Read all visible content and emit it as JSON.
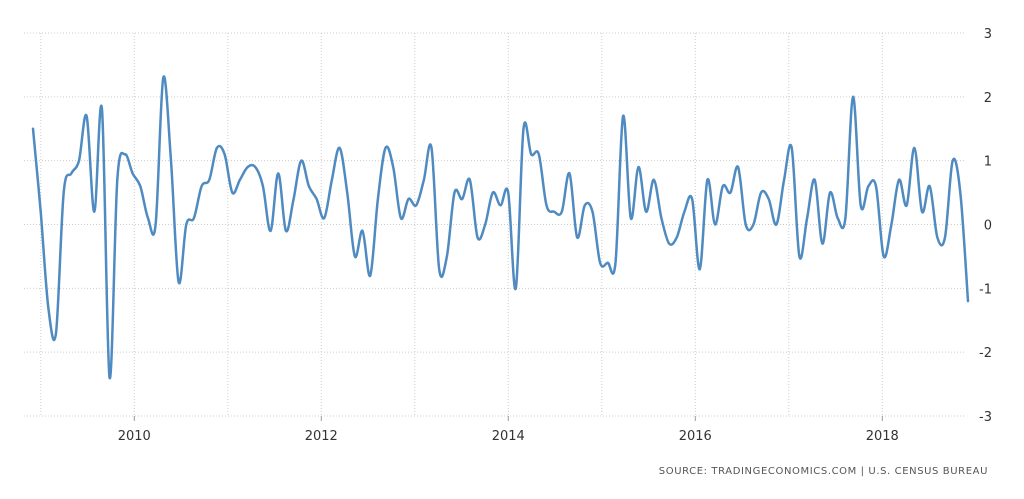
{
  "source_text": "SOURCE: TRADINGECONOMICS.COM | U.S. CENSUS BUREAU",
  "colors": {
    "line": "#4f8bc0",
    "grid": "#cccccc",
    "text": "#333333"
  },
  "chart_data": {
    "type": "line",
    "title": "",
    "xlabel": "",
    "ylabel": "",
    "ylim": [
      -3,
      3
    ],
    "yticks": [
      "3",
      "2",
      "1",
      "0",
      "-1",
      "-2",
      "-3"
    ],
    "xticks": [
      "2010",
      "2012",
      "2014",
      "2016",
      "2018"
    ],
    "x_start": "2008-12",
    "x_end": "2018-12",
    "grid": true,
    "legend": "none",
    "series": [
      {
        "values": [
          1.5,
          0.2,
          -1.3,
          -1.7,
          0.5,
          0.8,
          1.0,
          1.7,
          0.2,
          1.8,
          -2.4,
          0.7,
          1.1,
          0.8,
          0.6,
          0.1,
          0.0,
          2.3,
          1.0,
          -0.9,
          0.0,
          0.1,
          0.6,
          0.7,
          1.2,
          1.1,
          0.5,
          0.7,
          0.9,
          0.9,
          0.6,
          -0.1,
          0.8,
          -0.1,
          0.4,
          1.0,
          0.6,
          0.4,
          0.1,
          0.7,
          1.2,
          0.5,
          -0.5,
          -0.1,
          -0.8,
          0.4,
          1.2,
          0.9,
          0.1,
          0.4,
          0.3,
          0.7,
          1.2,
          -0.7,
          -0.5,
          0.5,
          0.4,
          0.7,
          -0.2,
          0.0,
          0.5,
          0.3,
          0.5,
          -1.0,
          1.5,
          1.1,
          1.1,
          0.3,
          0.2,
          0.2,
          0.8,
          -0.2,
          0.3,
          0.2,
          -0.6,
          -0.6,
          -0.6,
          1.7,
          0.1,
          0.9,
          0.2,
          0.7,
          0.1,
          -0.3,
          -0.2,
          0.2,
          0.4,
          -0.7,
          0.7,
          0.0,
          0.6,
          0.5,
          0.9,
          0.0,
          0.0,
          0.5,
          0.4,
          0.0,
          0.7,
          1.2,
          -0.5,
          0.1,
          0.7,
          -0.3,
          0.5,
          0.1,
          0.1,
          2.0,
          0.3,
          0.6,
          0.6,
          -0.5,
          0.0,
          0.7,
          0.3,
          1.2,
          0.2,
          0.6,
          -0.2,
          -0.2,
          1.0,
          0.5,
          -1.2
        ]
      }
    ]
  }
}
